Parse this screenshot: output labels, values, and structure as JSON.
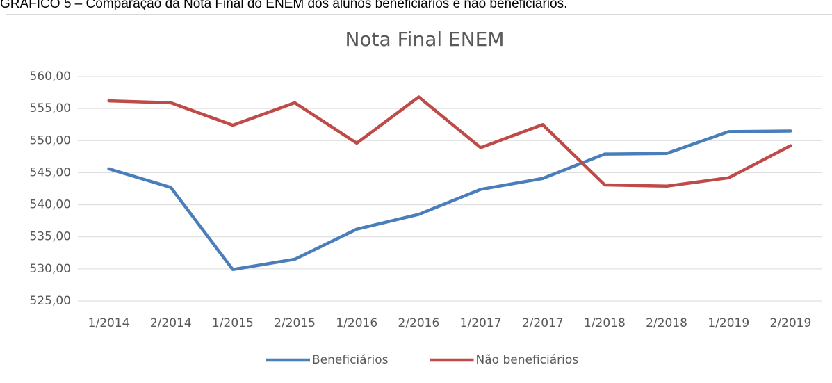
{
  "caption": "GRÁFICO 5 – Comparação da Nota Final do ENEM dos alunos beneficiários e não beneficiários.",
  "chart_data": {
    "type": "line",
    "title": "Nota Final ENEM",
    "categories": [
      "1/2014",
      "2/2014",
      "1/2015",
      "2/2015",
      "1/2016",
      "2/2016",
      "1/2017",
      "2/2017",
      "1/2018",
      "2/2018",
      "1/2019",
      "2/2019"
    ],
    "series": [
      {
        "name": "Beneficiários",
        "color": "#4a7ebb",
        "values": [
          545.6,
          542.7,
          529.9,
          531.5,
          536.2,
          538.5,
          542.4,
          544.1,
          547.9,
          548.0,
          551.4,
          551.5
        ]
      },
      {
        "name": "Não beneficiários",
        "color": "#be4b48",
        "values": [
          556.2,
          555.9,
          552.4,
          555.9,
          549.6,
          556.8,
          548.9,
          552.5,
          543.1,
          542.9,
          544.2,
          549.2
        ]
      }
    ],
    "ylim": [
      525,
      560
    ],
    "yticks": [
      {
        "value": 525,
        "label": "525,00"
      },
      {
        "value": 530,
        "label": "530,00"
      },
      {
        "value": 535,
        "label": "535,00"
      },
      {
        "value": 540,
        "label": "540,00"
      },
      {
        "value": 545,
        "label": "545,00"
      },
      {
        "value": 550,
        "label": "550,00"
      },
      {
        "value": 555,
        "label": "555,00"
      },
      {
        "value": 560,
        "label": "560,00"
      }
    ],
    "grid": true,
    "legend": "bottom"
  }
}
